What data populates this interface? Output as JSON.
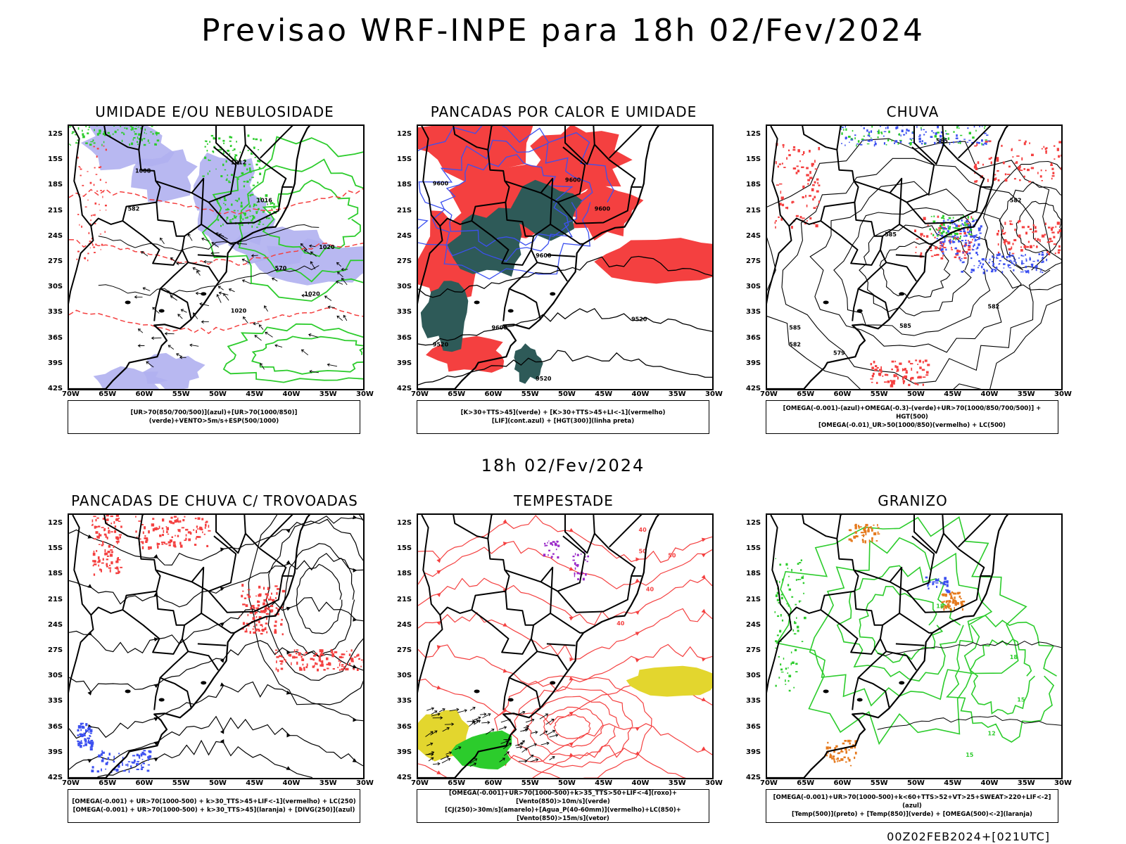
{
  "main_title": "Previsao WRF-INPE  para 18h 02/Fev/2024",
  "mid_title": "18h 02/Fev/2024",
  "footer_code": "00Z02FEB2024+[021UTC]",
  "colors": {
    "red": "#f44040",
    "green": "#2ccc2c",
    "blue": "#3c50f0",
    "lavender": "#b0b0f0",
    "darkteal": "#2e5a58",
    "yellow": "#e3d62e",
    "orange": "#e57a1e",
    "purple": "#9a28c8"
  },
  "chart_data": [
    {
      "type": "map",
      "title": "UMIDADE E/OU NEBULOSIDADE",
      "legend": [
        "[UR>70(850/700/500)](azul)+[UR>70(1000/850)](verde)+VENTO>5m/s+ESP(500/1000)"
      ],
      "lat_ticks": [
        "12S",
        "15S",
        "18S",
        "21S",
        "24S",
        "27S",
        "30S",
        "33S",
        "36S",
        "39S",
        "42S"
      ],
      "lon_ticks": [
        "70W",
        "65W",
        "60W",
        "55W",
        "50W",
        "45W",
        "40W",
        "35W",
        "30W"
      ],
      "contour_labels": [
        "1008",
        "1012",
        "1016",
        "1020",
        "570",
        "582"
      ]
    },
    {
      "type": "map",
      "title": "PANCADAS POR CALOR E UMIDADE",
      "legend": [
        "[K>30+TTS>45](verde) + [K>30+TTS>45+LI<-1](vermelho)",
        "[LIF](cont.azul) + [HGT(300)](linha preta)"
      ],
      "lat_ticks": [
        "12S",
        "15S",
        "18S",
        "21S",
        "24S",
        "27S",
        "30S",
        "33S",
        "36S",
        "39S",
        "42S"
      ],
      "lon_ticks": [
        "70W",
        "65W",
        "60W",
        "55W",
        "50W",
        "45W",
        "40W",
        "35W",
        "30W"
      ],
      "contour_labels": [
        "9600",
        "9520"
      ]
    },
    {
      "type": "map",
      "title": "CHUVA",
      "legend": [
        "[OMEGA(-0.001)-(azul)+OMEGA(-0.3)-(verde)+UR>70(1000/850/700/500)] + HGT(500)",
        "[OMEGA(-0.01)_UR>50(1000/850)(vermelho) + LC(500)"
      ],
      "lat_ticks": [
        "12S",
        "15S",
        "18S",
        "21S",
        "24S",
        "27S",
        "30S",
        "33S",
        "36S",
        "39S",
        "42S"
      ],
      "lon_ticks": [
        "70W",
        "65W",
        "60W",
        "55W",
        "50W",
        "45W",
        "40W",
        "35W",
        "30W"
      ],
      "contour_labels": [
        "585",
        "582",
        "579"
      ]
    },
    {
      "type": "map",
      "title": "PANCADAS DE CHUVA C/ TROVOADAS",
      "legend": [
        "[OMEGA(-0.001) + UR>70(1000-500) + k>30_TTS>45+LIF<-1](vermelho) + LC(250)",
        "[OMEGA(-0.001) + UR>70(1000-500) + k>30_TTS>45](laranja) + [DIVG(250)](azul)"
      ],
      "lat_ticks": [
        "12S",
        "15S",
        "18S",
        "21S",
        "24S",
        "27S",
        "30S",
        "33S",
        "36S",
        "39S",
        "42S"
      ],
      "lon_ticks": [
        "70W",
        "65W",
        "60W",
        "55W",
        "50W",
        "45W",
        "40W",
        "35W",
        "30W"
      ],
      "contour_labels": []
    },
    {
      "type": "map",
      "title": "TEMPESTADE",
      "legend": [
        "[OMEGA(-0.001)+UR>70(1000-500)+k>35_TTS>50+LIF<-4](roxo)+[Vento(850)>10m/s](verde)",
        "[CJ(250)>30m/s](amarelo)+[Agua_P(40-60mm)](vermelho)+LC(850)+[Vento(850)>15m/s](vetor)"
      ],
      "lat_ticks": [
        "12S",
        "15S",
        "18S",
        "21S",
        "24S",
        "27S",
        "30S",
        "33S",
        "36S",
        "39S",
        "42S"
      ],
      "lon_ticks": [
        "70W",
        "65W",
        "60W",
        "55W",
        "50W",
        "45W",
        "40W",
        "35W",
        "30W"
      ],
      "contour_labels": [
        "40",
        "50"
      ]
    },
    {
      "type": "map",
      "title": "GRANIZO",
      "legend": [
        "[OMEGA(-0.001)+UR>70(1000-500)+k<60+TTS>52+VT>25+SWEAT>220+LIF<-2](azul)",
        "[Temp(500)](preto) + [Temp(850)](verde) + [OMEGA(500)<-2](laranja)"
      ],
      "lat_ticks": [
        "12S",
        "15S",
        "18S",
        "21S",
        "24S",
        "27S",
        "30S",
        "33S",
        "36S",
        "39S",
        "42S"
      ],
      "lon_ticks": [
        "70W",
        "65W",
        "60W",
        "55W",
        "50W",
        "45W",
        "40W",
        "35W",
        "30W"
      ],
      "contour_labels": [
        "12",
        "15",
        "18"
      ]
    }
  ]
}
